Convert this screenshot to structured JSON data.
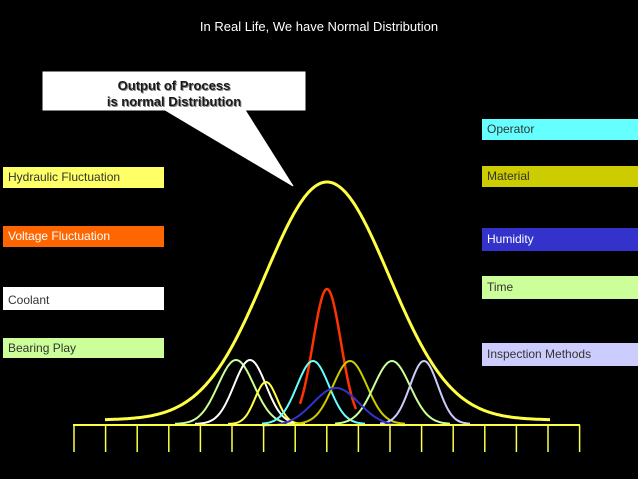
{
  "title": "In Real Life, We have Normal Distribution",
  "callout": {
    "line1": "Output of Process",
    "line2": "is normal Distribution"
  },
  "left_labels": [
    {
      "text": "Hydraulic Fluctuation",
      "bg": "#ffff66",
      "color": "#333333"
    },
    {
      "text": "Voltage Fluctuation",
      "bg": "#ff6600",
      "color": "#ffffff"
    },
    {
      "text": "Coolant",
      "bg": "#ffffff",
      "color": "#333333"
    },
    {
      "text": "Bearing Play",
      "bg": "#ccff99",
      "color": "#333333"
    }
  ],
  "right_labels": [
    {
      "text": "Operator",
      "bg": "#66ffff",
      "color": "#333333"
    },
    {
      "text": "Material",
      "bg": "#cccc00",
      "color": "#333333"
    },
    {
      "text": "Humidity",
      "bg": "#3333cc",
      "color": "#ffffff"
    },
    {
      "text": "Time",
      "bg": "#ccff99",
      "color": "#333333"
    },
    {
      "text": "Inspection Methods",
      "bg": "#ccccff",
      "color": "#333333"
    }
  ],
  "curves": [
    {
      "name": "output-normal-curve",
      "color": "#ffff44"
    },
    {
      "name": "red-curve",
      "color": "#ff3300"
    },
    {
      "name": "green-curve-1",
      "color": "#ccff99"
    },
    {
      "name": "white-curve",
      "color": "#ffffff"
    },
    {
      "name": "yellow-small-curve",
      "color": "#ffff44"
    },
    {
      "name": "cyan-curve",
      "color": "#66ffff"
    },
    {
      "name": "olive-curve",
      "color": "#cccc00"
    },
    {
      "name": "green-curve-2",
      "color": "#ccff99"
    },
    {
      "name": "lavender-curve",
      "color": "#ccccff"
    },
    {
      "name": "blue-curve",
      "color": "#3333cc"
    }
  ],
  "axis_color": "#ffff44"
}
